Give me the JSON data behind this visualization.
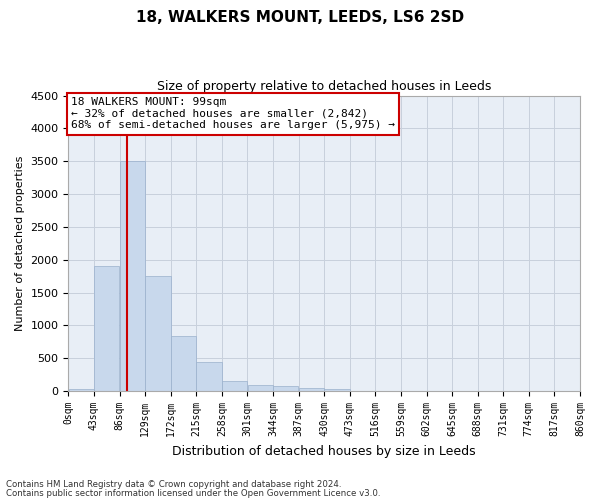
{
  "title": "18, WALKERS MOUNT, LEEDS, LS6 2SD",
  "subtitle": "Size of property relative to detached houses in Leeds",
  "xlabel": "Distribution of detached houses by size in Leeds",
  "ylabel": "Number of detached properties",
  "annotation_text_line1": "18 WALKERS MOUNT: 99sqm",
  "annotation_text_line2": "← 32% of detached houses are smaller (2,842)",
  "annotation_text_line3": "68% of semi-detached houses are larger (5,975) →",
  "bar_color": "#c8d8ec",
  "bar_edge_color": "#9ab0cc",
  "vline_color": "#cc0000",
  "vline_x": 99,
  "annotation_box_facecolor": "#ffffff",
  "annotation_box_edgecolor": "#cc0000",
  "grid_color": "#c8d0dc",
  "background_color": "#e8eef6",
  "footer_line1": "Contains HM Land Registry data © Crown copyright and database right 2024.",
  "footer_line2": "Contains public sector information licensed under the Open Government Licence v3.0.",
  "bins": [
    0,
    43,
    86,
    129,
    172,
    215,
    258,
    301,
    344,
    387,
    430,
    473,
    516,
    559,
    602,
    645,
    688,
    731,
    774,
    817,
    860
  ],
  "bin_labels": [
    "0sqm",
    "43sqm",
    "86sqm",
    "129sqm",
    "172sqm",
    "215sqm",
    "258sqm",
    "301sqm",
    "344sqm",
    "387sqm",
    "430sqm",
    "473sqm",
    "516sqm",
    "559sqm",
    "602sqm",
    "645sqm",
    "688sqm",
    "731sqm",
    "774sqm",
    "817sqm",
    "860sqm"
  ],
  "bar_heights": [
    28,
    1900,
    3500,
    1760,
    840,
    450,
    150,
    100,
    75,
    50,
    38,
    10,
    5,
    3,
    2,
    1,
    0,
    0,
    0,
    0
  ],
  "ylim": [
    0,
    4500
  ],
  "yticks": [
    0,
    500,
    1000,
    1500,
    2000,
    2500,
    3000,
    3500,
    4000,
    4500
  ]
}
